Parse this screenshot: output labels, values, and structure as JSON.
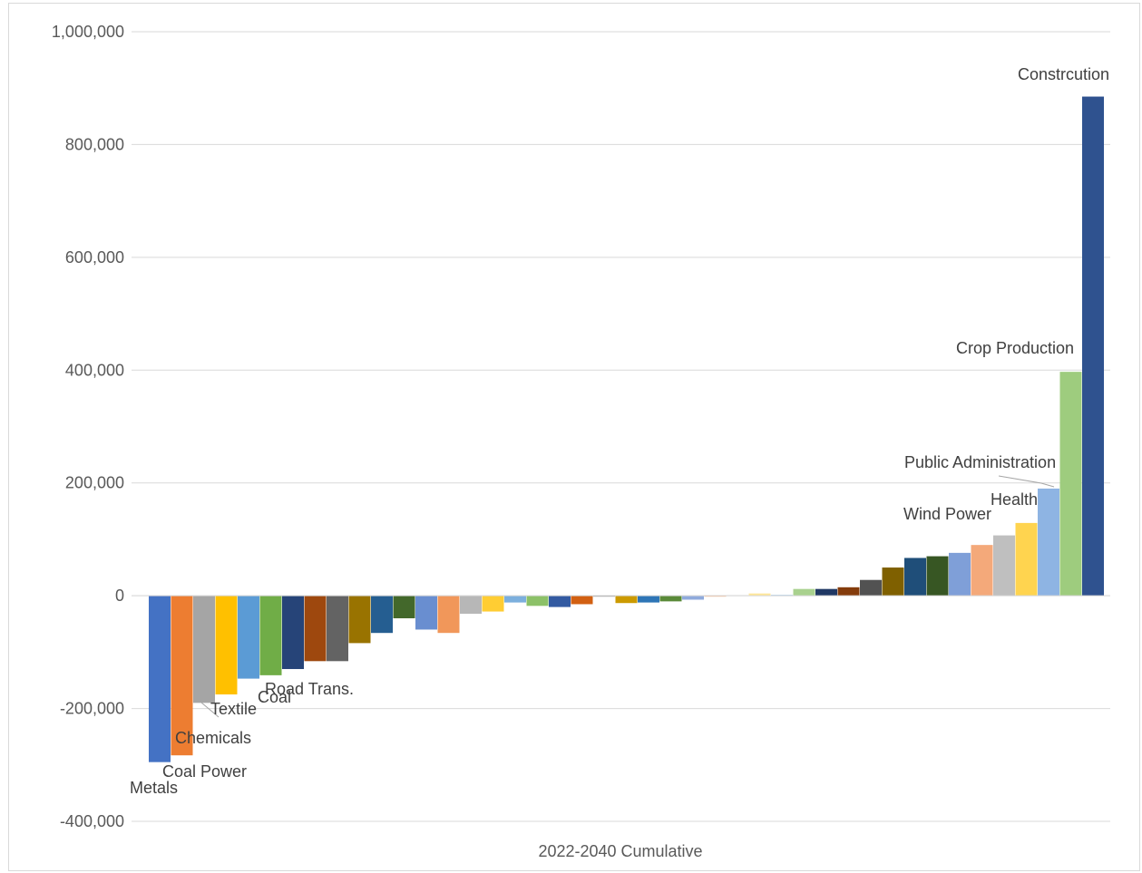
{
  "chart_data": {
    "type": "bar",
    "xlabel": "2022-2040 Cumulative",
    "ylim": [
      -400000,
      1000000
    ],
    "yticks": [
      -400000,
      -200000,
      0,
      200000,
      400000,
      600000,
      800000,
      1000000
    ],
    "ytick_labels": [
      "-400,000",
      "-200,000",
      "0",
      "200,000",
      "400,000",
      "600,000",
      "800,000",
      "1,000,000"
    ],
    "grid": true,
    "legend": "none",
    "bars": [
      {
        "value": -295000,
        "color": "#4472C4",
        "label": "Metals"
      },
      {
        "value": -283000,
        "color": "#ED7D31",
        "label": "Coal Power"
      },
      {
        "value": -190000,
        "color": "#A5A5A5",
        "label": "Chemicals"
      },
      {
        "value": -175000,
        "color": "#FFC000",
        "label": "Textile"
      },
      {
        "value": -147000,
        "color": "#5B9BD5",
        "label": ""
      },
      {
        "value": -141000,
        "color": "#70AD47",
        "label": "Coal"
      },
      {
        "value": -130000,
        "color": "#264478",
        "label": ""
      },
      {
        "value": -116000,
        "color": "#9E480E",
        "label": "Road Trans."
      },
      {
        "value": -116000,
        "color": "#636363",
        "label": ""
      },
      {
        "value": -84000,
        "color": "#997300",
        "label": ""
      },
      {
        "value": -66000,
        "color": "#255E91",
        "label": ""
      },
      {
        "value": -40000,
        "color": "#43682B",
        "label": ""
      },
      {
        "value": -60000,
        "color": "#698ED0",
        "label": ""
      },
      {
        "value": -66000,
        "color": "#F1975A",
        "label": ""
      },
      {
        "value": -32000,
        "color": "#B7B7B7",
        "label": ""
      },
      {
        "value": -28000,
        "color": "#FFCD33",
        "label": ""
      },
      {
        "value": -12000,
        "color": "#7CAFDD",
        "label": ""
      },
      {
        "value": -18000,
        "color": "#8CC168",
        "label": ""
      },
      {
        "value": -20000,
        "color": "#335AA1",
        "label": ""
      },
      {
        "value": -15000,
        "color": "#D26012",
        "label": ""
      },
      {
        "value": -1500,
        "color": "#848484",
        "label": ""
      },
      {
        "value": -13000,
        "color": "#CC9A00",
        "label": ""
      },
      {
        "value": -12000,
        "color": "#2E75B6",
        "label": ""
      },
      {
        "value": -10000,
        "color": "#5A8A39",
        "label": ""
      },
      {
        "value": -7000,
        "color": "#8FAADC",
        "label": ""
      },
      {
        "value": -1000,
        "color": "#F4B183",
        "label": ""
      },
      {
        "value": 1000,
        "color": "#C9C9C9",
        "label": ""
      },
      {
        "value": 4000,
        "color": "#FFE699",
        "label": ""
      },
      {
        "value": 1500,
        "color": "#9DC3E6",
        "label": ""
      },
      {
        "value": 12000,
        "color": "#A9D18E",
        "label": ""
      },
      {
        "value": 12000,
        "color": "#203864",
        "label": ""
      },
      {
        "value": 15000,
        "color": "#843C0C",
        "label": ""
      },
      {
        "value": 28000,
        "color": "#525252",
        "label": ""
      },
      {
        "value": 50000,
        "color": "#7F6000",
        "label": ""
      },
      {
        "value": 67000,
        "color": "#1F4E79",
        "label": ""
      },
      {
        "value": 70000,
        "color": "#375623",
        "label": ""
      },
      {
        "value": 76000,
        "color": "#7F9FD8",
        "label": ""
      },
      {
        "value": 90000,
        "color": "#F4A97A",
        "label": ""
      },
      {
        "value": 107000,
        "color": "#BFBFBF",
        "label": ""
      },
      {
        "value": 129000,
        "color": "#FFD44F",
        "label": "Wind Power"
      },
      {
        "value": 190000,
        "color": "#8EB4E3",
        "label": "Health"
      },
      {
        "value": 397000,
        "color": "#9ECC7E",
        "label": "Crop Production"
      },
      {
        "value": 885000,
        "color": "#2F528F",
        "label": "Constrcution"
      }
    ],
    "extra_labels": [
      {
        "text": "Public Administration",
        "bar_index": 40
      }
    ]
  }
}
